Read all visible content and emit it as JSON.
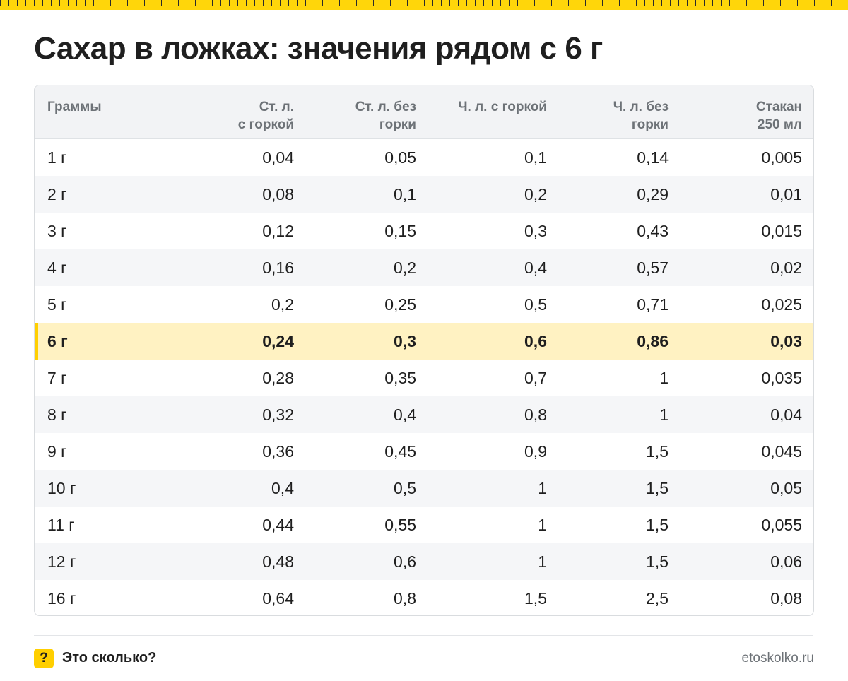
{
  "colors": {
    "accent": "#ffcf00",
    "highlight_row": "#fff2c2",
    "header_bg": "#f2f3f5"
  },
  "title": "Сахар в ложках: значения рядом с 6 г",
  "footer": {
    "brand_icon": "?",
    "brand": "Это сколько?",
    "site": "etoskolko.ru"
  },
  "chart_data": {
    "type": "table",
    "title": "Сахар в ложках: значения рядом с 6 г",
    "columns": [
      [
        "Граммы"
      ],
      [
        "Ст. л.",
        "с горкой"
      ],
      [
        "Ст. л. без",
        "горки"
      ],
      [
        "Ч. л. с горкой"
      ],
      [
        "Ч. л. без",
        "горки"
      ],
      [
        "Стакан",
        "250 мл"
      ]
    ],
    "highlight_row": "6 г",
    "rows": [
      [
        "1 г",
        "0,04",
        "0,05",
        "0,1",
        "0,14",
        "0,005"
      ],
      [
        "2 г",
        "0,08",
        "0,1",
        "0,2",
        "0,29",
        "0,01"
      ],
      [
        "3 г",
        "0,12",
        "0,15",
        "0,3",
        "0,43",
        "0,015"
      ],
      [
        "4 г",
        "0,16",
        "0,2",
        "0,4",
        "0,57",
        "0,02"
      ],
      [
        "5 г",
        "0,2",
        "0,25",
        "0,5",
        "0,71",
        "0,025"
      ],
      [
        "6 г",
        "0,24",
        "0,3",
        "0,6",
        "0,86",
        "0,03"
      ],
      [
        "7 г",
        "0,28",
        "0,35",
        "0,7",
        "1",
        "0,035"
      ],
      [
        "8 г",
        "0,32",
        "0,4",
        "0,8",
        "1",
        "0,04"
      ],
      [
        "9 г",
        "0,36",
        "0,45",
        "0,9",
        "1,5",
        "0,045"
      ],
      [
        "10 г",
        "0,4",
        "0,5",
        "1",
        "1,5",
        "0,05"
      ],
      [
        "11 г",
        "0,44",
        "0,55",
        "1",
        "1,5",
        "0,055"
      ],
      [
        "12 г",
        "0,48",
        "0,6",
        "1",
        "1,5",
        "0,06"
      ],
      [
        "16 г",
        "0,64",
        "0,8",
        "1,5",
        "2,5",
        "0,08"
      ]
    ]
  }
}
